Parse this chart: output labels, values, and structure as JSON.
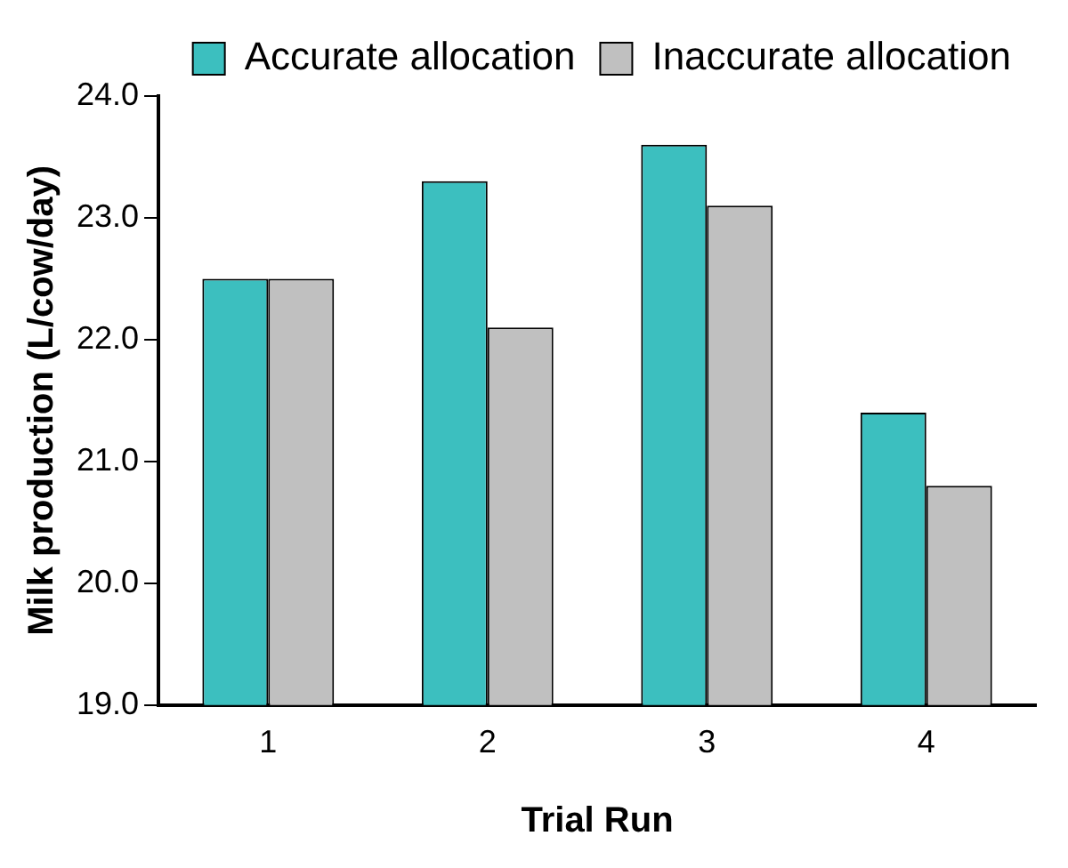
{
  "chart_data": {
    "type": "bar",
    "xlabel": "Trial Run",
    "ylabel": "Milk production (L/cow/day)",
    "categories": [
      "1",
      "2",
      "3",
      "4"
    ],
    "series": [
      {
        "name": "Accurate allocation",
        "color": "#3cbfbf",
        "values": [
          22.5,
          23.3,
          23.6,
          21.4
        ]
      },
      {
        "name": "Inaccurate allocation",
        "color": "#c0c0c0",
        "values": [
          22.5,
          22.1,
          23.1,
          20.8
        ]
      }
    ],
    "ylim": [
      19,
      24
    ],
    "yticks": [
      {
        "value": 19,
        "label": "19.0"
      },
      {
        "value": 20,
        "label": "20.0"
      },
      {
        "value": 21,
        "label": "21.0"
      },
      {
        "value": 22,
        "label": "22.0"
      },
      {
        "value": 23,
        "label": "23.0"
      },
      {
        "value": 24,
        "label": "24.0"
      }
    ],
    "grid": false,
    "legend": "top right"
  }
}
